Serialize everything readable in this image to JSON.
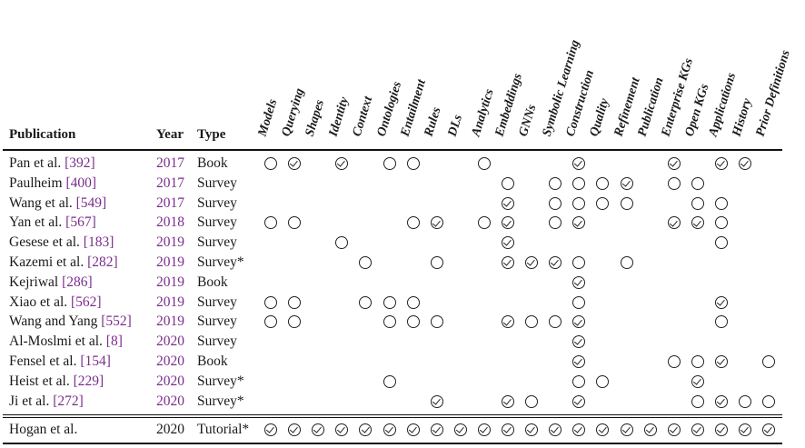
{
  "header": {
    "publication": "Publication",
    "year": "Year",
    "type": "Type",
    "topics": [
      "Models",
      "Querying",
      "Shapes",
      "Identity",
      "Context",
      "Ontologies",
      "Entailment",
      "Rules",
      "DLs",
      "Analytics",
      "Embeddings",
      "GNNs",
      "Symbolic Learning",
      "Construction",
      "Quality",
      "Refinement",
      "Publication",
      "Enterprise KGs",
      "Open KGs",
      "Applications",
      "History",
      "Prior Definitions"
    ]
  },
  "rows": [
    {
      "author": "Pan et al.",
      "cite": "[392]",
      "year": "2017",
      "type": "Book",
      "marks": [
        "o",
        "c",
        "",
        "c",
        "",
        "o",
        "o",
        "",
        "",
        "o",
        "",
        "",
        "",
        "c",
        "",
        "",
        "",
        "c",
        "",
        "c",
        "c",
        ""
      ]
    },
    {
      "author": "Paulheim",
      "cite": "[400]",
      "year": "2017",
      "type": "Survey",
      "marks": [
        "",
        "",
        "",
        "",
        "",
        "",
        "",
        "",
        "",
        "",
        "o",
        "",
        "o",
        "o",
        "o",
        "c",
        "",
        "o",
        "o",
        "",
        "",
        ""
      ]
    },
    {
      "author": "Wang et al.",
      "cite": "[549]",
      "year": "2017",
      "type": "Survey",
      "marks": [
        "",
        "",
        "",
        "",
        "",
        "",
        "",
        "",
        "",
        "",
        "c",
        "",
        "o",
        "o",
        "o",
        "o",
        "",
        "",
        "o",
        "o",
        "",
        ""
      ]
    },
    {
      "author": "Yan et al.",
      "cite": "[567]",
      "year": "2018",
      "type": "Survey",
      "marks": [
        "o",
        "o",
        "",
        "",
        "",
        "",
        "o",
        "c",
        "",
        "o",
        "c",
        "",
        "o",
        "c",
        "",
        "",
        "",
        "c",
        "c",
        "o",
        "",
        ""
      ]
    },
    {
      "author": "Gesese et al.",
      "cite": "[183]",
      "year": "2019",
      "type": "Survey",
      "marks": [
        "",
        "",
        "",
        "o",
        "",
        "",
        "",
        "",
        "",
        "",
        "c",
        "",
        "",
        "",
        "",
        "",
        "",
        "",
        "",
        "o",
        "",
        ""
      ]
    },
    {
      "author": "Kazemi et al.",
      "cite": "[282]",
      "year": "2019",
      "type": "Survey*",
      "marks": [
        "",
        "",
        "",
        "",
        "o",
        "",
        "",
        "o",
        "",
        "",
        "c",
        "c",
        "c",
        "o",
        "",
        "o",
        "",
        "",
        "",
        "",
        "",
        ""
      ]
    },
    {
      "author": "Kejriwal",
      "cite": "[286]",
      "year": "2019",
      "type": "Book",
      "marks": [
        "",
        "",
        "",
        "",
        "",
        "",
        "",
        "",
        "",
        "",
        "",
        "",
        "",
        "c",
        "",
        "",
        "",
        "",
        "",
        "",
        "",
        ""
      ]
    },
    {
      "author": "Xiao et al.",
      "cite": "[562]",
      "year": "2019",
      "type": "Survey",
      "marks": [
        "o",
        "o",
        "",
        "",
        "o",
        "o",
        "o",
        "",
        "",
        "",
        "",
        "",
        "",
        "o",
        "",
        "",
        "",
        "",
        "",
        "c",
        "",
        ""
      ]
    },
    {
      "author": "Wang and Yang",
      "cite": "[552]",
      "year": "2019",
      "type": "Survey",
      "marks": [
        "o",
        "o",
        "",
        "",
        "",
        "o",
        "o",
        "o",
        "",
        "",
        "c",
        "o",
        "o",
        "c",
        "",
        "",
        "",
        "",
        "",
        "o",
        "",
        ""
      ]
    },
    {
      "author": "Al-Moslmi et al.",
      "cite": "[8]",
      "year": "2020",
      "type": "Survey",
      "marks": [
        "",
        "",
        "",
        "",
        "",
        "",
        "",
        "",
        "",
        "",
        "",
        "",
        "",
        "c",
        "",
        "",
        "",
        "",
        "",
        "",
        "",
        ""
      ]
    },
    {
      "author": "Fensel et al.",
      "cite": "[154]",
      "year": "2020",
      "type": "Book",
      "marks": [
        "",
        "",
        "",
        "",
        "",
        "",
        "",
        "",
        "",
        "",
        "",
        "",
        "",
        "c",
        "",
        "",
        "",
        "o",
        "o",
        "c",
        "",
        "o"
      ]
    },
    {
      "author": "Heist et al.",
      "cite": "[229]",
      "year": "2020",
      "type": "Survey*",
      "marks": [
        "",
        "",
        "",
        "",
        "",
        "o",
        "",
        "",
        "",
        "",
        "",
        "",
        "",
        "o",
        "o",
        "",
        "",
        "",
        "c",
        "",
        "",
        ""
      ]
    },
    {
      "author": "Ji et al.",
      "cite": "[272]",
      "year": "2020",
      "type": "Survey*",
      "marks": [
        "",
        "",
        "",
        "",
        "",
        "",
        "",
        "c",
        "",
        "",
        "c",
        "o",
        "",
        "c",
        "",
        "",
        "",
        "",
        "o",
        "c",
        "o",
        "o"
      ]
    }
  ],
  "footer": {
    "author": "Hogan et al.",
    "cite": "",
    "year": "2020",
    "type": "Tutorial*",
    "marks": [
      "c",
      "c",
      "c",
      "c",
      "c",
      "c",
      "c",
      "c",
      "c",
      "c",
      "c",
      "c",
      "c",
      "c",
      "c",
      "c",
      "c",
      "c",
      "c",
      "c",
      "c",
      "c"
    ]
  }
}
